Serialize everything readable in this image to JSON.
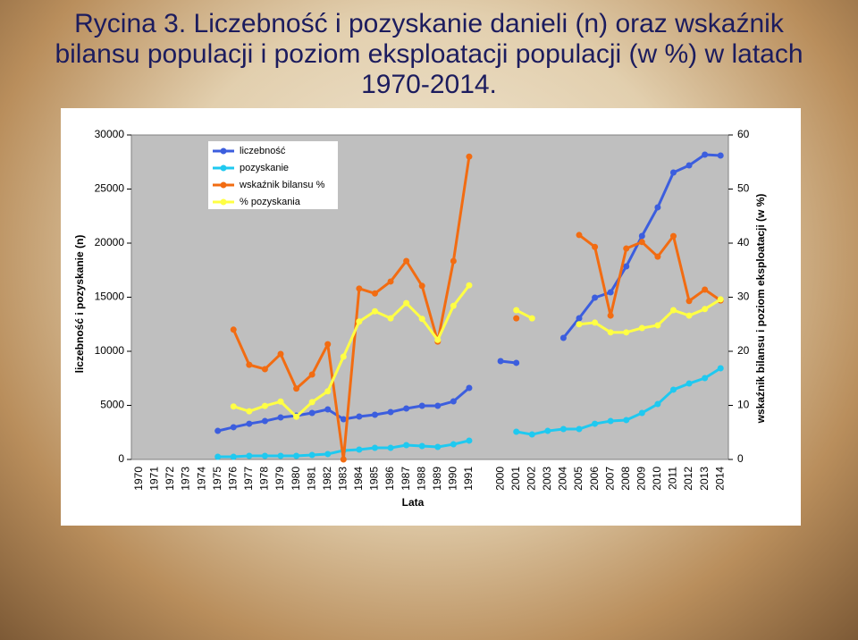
{
  "chart_data": {
    "type": "line",
    "title": "Rycina 3. Liczebność i pozyskanie danieli (n) oraz wskaźnik bilansu populacji i poziom eksploatacji populacji (w %) w latach 1970-2014.",
    "x_label": "Lata",
    "y_label": "liczebność i pozyskanie (n)",
    "y2_label": "wskaźnik bilansu i poziom eksploatacji (w %)",
    "categories": [
      "1970",
      "1971",
      "1972",
      "1973",
      "1974",
      "1975",
      "1976",
      "1977",
      "1978",
      "1979",
      "1980",
      "1981",
      "1982",
      "1983",
      "1984",
      "1985",
      "1986",
      "1987",
      "1988",
      "1989",
      "1990",
      "1991",
      null,
      "2000",
      "2001",
      "2002",
      "2003",
      "2004",
      "2005",
      "2006",
      "2007",
      "2008",
      "2009",
      "2010",
      "2011",
      "2012",
      "2013",
      "2014"
    ],
    "ylim": [
      0,
      30000
    ],
    "yticks": [
      0,
      5000,
      10000,
      15000,
      20000,
      25000,
      30000
    ],
    "y2lim": [
      0,
      60
    ],
    "y2ticks": [
      0,
      10,
      20,
      30,
      40,
      50,
      60
    ],
    "grid": false,
    "legend": "upper-left",
    "series": [
      {
        "name": "liczebność",
        "color": "#3c5ede",
        "values": [
          null,
          null,
          null,
          null,
          null,
          2640,
          2980,
          3300,
          3550,
          3880,
          4050,
          4300,
          4630,
          3720,
          3970,
          4130,
          4380,
          4710,
          4960,
          4960,
          5370,
          6610,
          null,
          9090,
          8930,
          null,
          null,
          11240,
          13060,
          14960,
          15450,
          17850,
          20660,
          23310,
          26530,
          27190,
          28180,
          28100
        ]
      },
      {
        "name": "pozyskanie",
        "color": "#1fc9f0",
        "values": [
          null,
          null,
          null,
          null,
          null,
          250,
          250,
          330,
          330,
          330,
          330,
          410,
          500,
          830,
          910,
          1070,
          1070,
          1320,
          1240,
          1160,
          1400,
          1740,
          null,
          null,
          2560,
          2310,
          2640,
          2810,
          2810,
          3300,
          3550,
          3640,
          4300,
          5120,
          6450,
          7020,
          7520,
          8430
        ]
      },
      {
        "name": "wskaźnik bilansu %",
        "color": "#f26c12",
        "axis": "y2",
        "values": [
          null,
          null,
          null,
          null,
          null,
          null,
          24.0,
          17.5,
          16.7,
          19.5,
          13.1,
          15.7,
          21.3,
          0,
          31.6,
          30.7,
          32.9,
          36.7,
          32.1,
          21.8,
          36.7,
          56.0,
          null,
          null,
          26.1,
          null,
          null,
          null,
          41.5,
          39.3,
          26.6,
          39.0,
          40.2,
          37.5,
          41.3,
          29.3,
          31.4,
          29.4
        ]
      },
      {
        "name": "% pozyskania",
        "color": "#ffff44",
        "axis": "y2",
        "values": [
          null,
          null,
          null,
          null,
          null,
          null,
          9.8,
          8.9,
          9.9,
          10.7,
          7.9,
          10.6,
          12.6,
          19.0,
          25.5,
          27.4,
          26.1,
          28.9,
          26.0,
          22.1,
          28.4,
          32.2,
          null,
          null,
          27.6,
          26.1,
          null,
          null,
          25.0,
          25.3,
          23.5,
          23.5,
          24.3,
          24.8,
          27.6,
          26.6,
          27.8,
          29.6
        ]
      }
    ]
  }
}
